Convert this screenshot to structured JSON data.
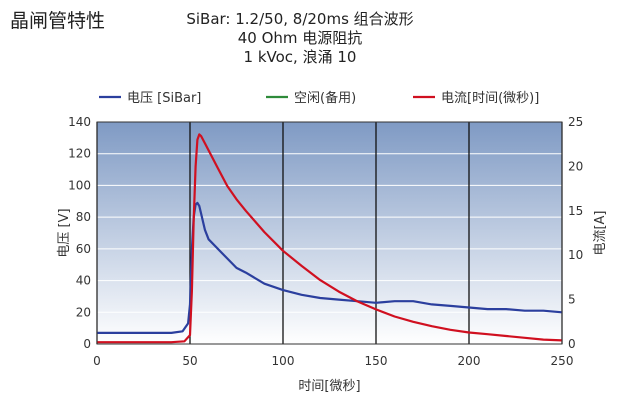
{
  "heading": "晶闸管特性",
  "title_lines": [
    "SiBar: 1.2/50, 8/20ms 组合波形",
    "40 Ohm 电源阻抗",
    "1 kVoc, 浪涌 10"
  ],
  "colors": {
    "voltage": "#2b3f9e",
    "idle": "#2e8b3a",
    "current": "#d01020",
    "plot_bg_top": "#7f9ac4",
    "plot_bg_bottom": "#ffffff"
  },
  "chart_data": {
    "type": "line",
    "xlabel": "时间[微秒]",
    "ylabel": "电压 [V]",
    "y2label": "电流[A]",
    "xlim": [
      0,
      250
    ],
    "ylim": [
      0,
      140
    ],
    "y2lim": [
      0,
      25
    ],
    "xticks": [
      0,
      50,
      100,
      150,
      200,
      250
    ],
    "yticks": [
      0,
      20,
      40,
      60,
      80,
      100,
      120,
      140
    ],
    "y2ticks": [
      0,
      5,
      10,
      15,
      20,
      25
    ],
    "legend_position": "top",
    "grid": true,
    "series": [
      {
        "name": "电压 [SiBar]",
        "axis": "left",
        "x": [
          0,
          10,
          20,
          30,
          40,
          46,
          49,
          50,
          51,
          52,
          53,
          54,
          55,
          56,
          58,
          60,
          65,
          70,
          75,
          80,
          90,
          100,
          110,
          120,
          130,
          140,
          150,
          160,
          170,
          180,
          190,
          200,
          210,
          220,
          230,
          240,
          250
        ],
        "y": [
          7,
          7,
          7,
          7,
          7,
          8,
          13,
          25,
          60,
          80,
          88,
          89,
          87,
          82,
          72,
          66,
          60,
          54,
          48,
          45,
          38,
          34,
          31,
          29,
          28,
          27,
          26,
          27,
          27,
          25,
          24,
          23,
          22,
          22,
          21,
          21,
          20
        ]
      },
      {
        "name": "空闲(备用)",
        "axis": "left",
        "x": [],
        "y": []
      },
      {
        "name": "电流[时间(微秒)]",
        "axis": "right",
        "x": [
          0,
          10,
          20,
          30,
          40,
          47,
          50,
          51,
          52,
          53,
          54,
          55,
          56,
          58,
          60,
          65,
          70,
          75,
          80,
          90,
          100,
          110,
          120,
          130,
          140,
          150,
          160,
          170,
          180,
          190,
          200,
          210,
          220,
          230,
          240,
          250
        ],
        "y": [
          0.2,
          0.2,
          0.2,
          0.2,
          0.2,
          0.3,
          1,
          6,
          14,
          20,
          23,
          23.6,
          23.4,
          22.6,
          21.8,
          19.8,
          17.8,
          16.3,
          15,
          12.6,
          10.5,
          8.8,
          7.2,
          5.9,
          4.8,
          3.9,
          3.1,
          2.5,
          2.0,
          1.6,
          1.3,
          1.1,
          0.9,
          0.7,
          0.5,
          0.4
        ]
      }
    ]
  }
}
